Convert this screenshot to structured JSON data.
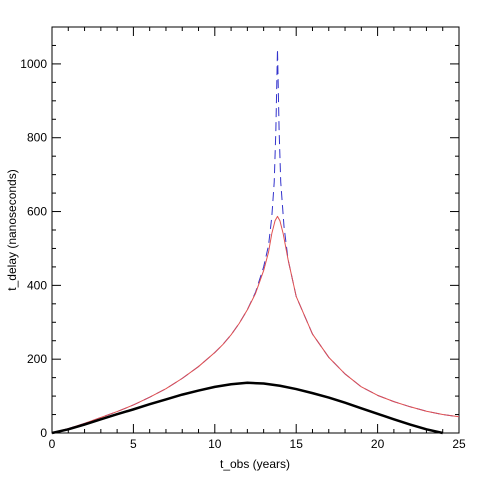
{
  "chart_data": {
    "type": "line",
    "title": "",
    "xlabel": "t_obs (years)",
    "ylabel": "t_delay (nanoseconds)",
    "xlim": [
      0,
      25
    ],
    "ylim": [
      0,
      1100
    ],
    "x_ticks": [
      0,
      5,
      10,
      15,
      20,
      25
    ],
    "y_ticks": [
      0,
      200,
      400,
      600,
      800,
      1000
    ],
    "grid": false,
    "legend": "none",
    "series": [
      {
        "color": "#3333cc",
        "style": "dashed",
        "width": 1,
        "points": [
          [
            0,
            0
          ],
          [
            1,
            12
          ],
          [
            2,
            26
          ],
          [
            3,
            42
          ],
          [
            4,
            58
          ],
          [
            5,
            76
          ],
          [
            6,
            97
          ],
          [
            7,
            120
          ],
          [
            8,
            148
          ],
          [
            9,
            180
          ],
          [
            10,
            218
          ],
          [
            10.5,
            240
          ],
          [
            11,
            266
          ],
          [
            11.5,
            297
          ],
          [
            12,
            334
          ],
          [
            12.5,
            381
          ],
          [
            13,
            450
          ],
          [
            13.3,
            508
          ],
          [
            13.5,
            585
          ],
          [
            13.65,
            680
          ],
          [
            13.75,
            820
          ],
          [
            13.85,
            1040
          ],
          [
            13.95,
            820
          ],
          [
            14.05,
            680
          ],
          [
            14.25,
            560
          ],
          [
            14.5,
            470
          ],
          [
            15,
            370
          ],
          [
            16,
            268
          ],
          [
            17,
            205
          ],
          [
            18,
            160
          ],
          [
            19,
            125
          ],
          [
            20,
            102
          ],
          [
            21,
            85
          ],
          [
            22,
            71
          ],
          [
            23,
            59
          ],
          [
            24,
            50
          ],
          [
            25,
            44
          ]
        ]
      },
      {
        "color": "#e05050",
        "style": "solid",
        "width": 1,
        "points": [
          [
            0,
            0
          ],
          [
            1,
            12
          ],
          [
            2,
            26
          ],
          [
            3,
            42
          ],
          [
            4,
            58
          ],
          [
            5,
            76
          ],
          [
            6,
            97
          ],
          [
            7,
            120
          ],
          [
            8,
            148
          ],
          [
            9,
            180
          ],
          [
            10,
            218
          ],
          [
            10.5,
            240
          ],
          [
            11,
            266
          ],
          [
            11.5,
            297
          ],
          [
            12,
            334
          ],
          [
            12.5,
            378
          ],
          [
            13,
            440
          ],
          [
            13.3,
            490
          ],
          [
            13.5,
            540
          ],
          [
            13.7,
            575
          ],
          [
            13.85,
            587
          ],
          [
            14,
            575
          ],
          [
            14.2,
            540
          ],
          [
            14.5,
            470
          ],
          [
            15,
            370
          ],
          [
            16,
            268
          ],
          [
            17,
            205
          ],
          [
            18,
            160
          ],
          [
            19,
            125
          ],
          [
            20,
            102
          ],
          [
            21,
            85
          ],
          [
            22,
            71
          ],
          [
            23,
            59
          ],
          [
            24,
            50
          ],
          [
            25,
            44
          ]
        ]
      },
      {
        "color": "#000000",
        "style": "solid",
        "width": 2.5,
        "points": [
          [
            0,
            0
          ],
          [
            1,
            10
          ],
          [
            2,
            23
          ],
          [
            3,
            37
          ],
          [
            4,
            51
          ],
          [
            5,
            64
          ],
          [
            6,
            78
          ],
          [
            7,
            91
          ],
          [
            8,
            104
          ],
          [
            9,
            115
          ],
          [
            10,
            125
          ],
          [
            11,
            132
          ],
          [
            12,
            136
          ],
          [
            13,
            134
          ],
          [
            14,
            128
          ],
          [
            15,
            119
          ],
          [
            16,
            108
          ],
          [
            17,
            96
          ],
          [
            18,
            82
          ],
          [
            19,
            67
          ],
          [
            20,
            52
          ],
          [
            21,
            37
          ],
          [
            22,
            23
          ],
          [
            23,
            10
          ],
          [
            24,
            0
          ]
        ]
      }
    ]
  }
}
